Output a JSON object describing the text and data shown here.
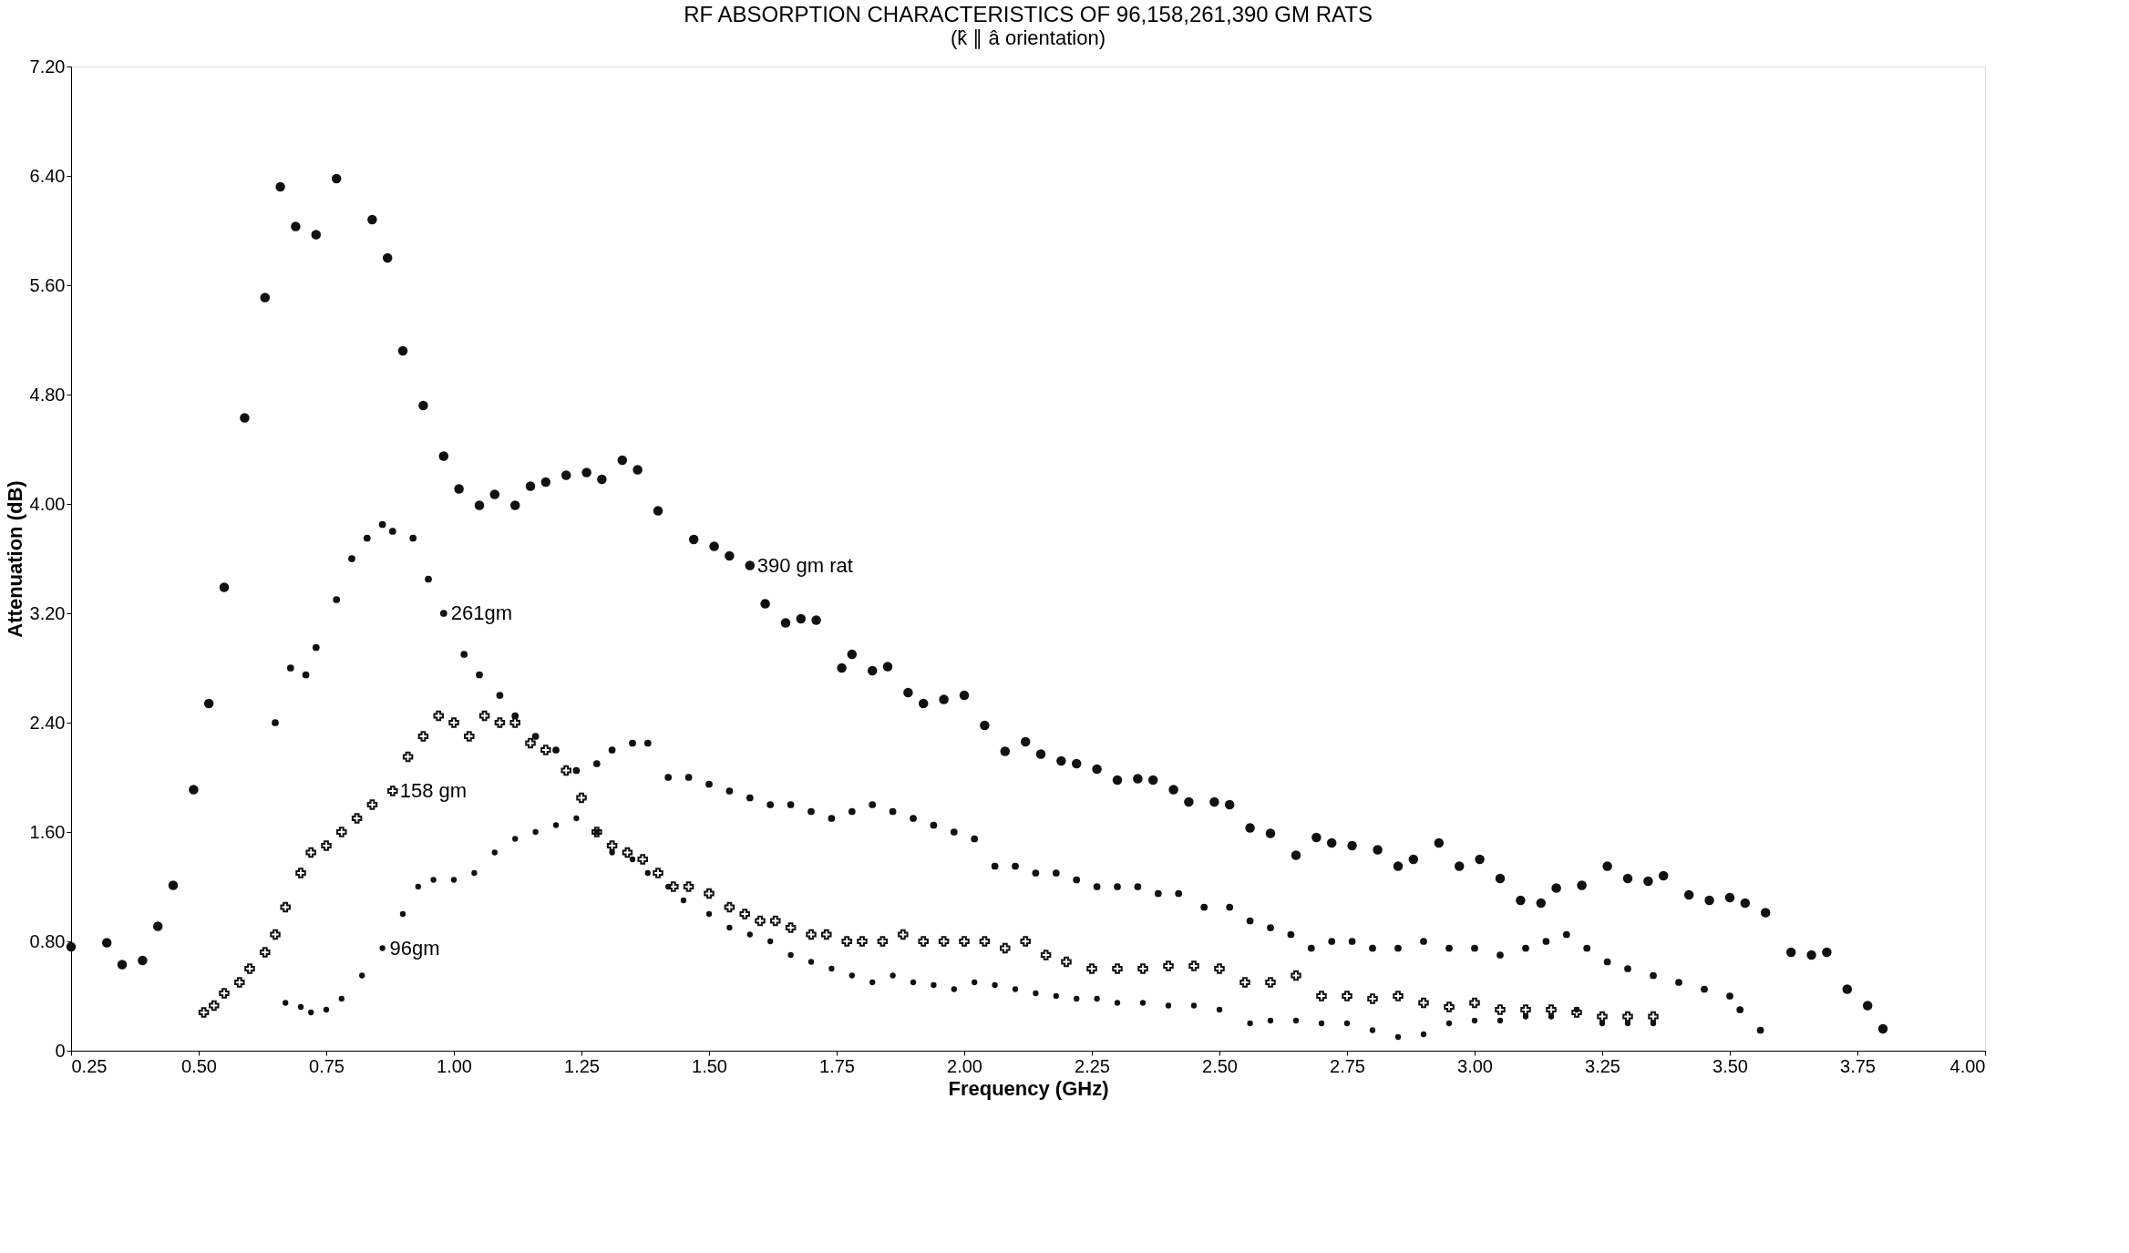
{
  "chart_data": {
    "type": "scatter",
    "title": "RF ABSORPTION CHARACTERISTICS OF 96,158,261,390 GM RATS",
    "subtitle": "(k̂ ∥ â orientation)",
    "xlabel": "Frequency (GHz)",
    "ylabel": "Attenuation (dB)",
    "xlim": [
      0.25,
      4.0
    ],
    "ylim": [
      0,
      7.2
    ],
    "xticks": [
      {
        "value": 0.25,
        "label": "0.25"
      },
      {
        "value": 0.5,
        "label": "0.50"
      },
      {
        "value": 0.75,
        "label": "0.75"
      },
      {
        "value": 1.0,
        "label": "1.00"
      },
      {
        "value": 1.25,
        "label": "1.25"
      },
      {
        "value": 1.5,
        "label": "1.50"
      },
      {
        "value": 1.75,
        "label": "1.75"
      },
      {
        "value": 2.0,
        "label": "2.00"
      },
      {
        "value": 2.25,
        "label": "2.25"
      },
      {
        "value": 2.5,
        "label": "2.50"
      },
      {
        "value": 2.75,
        "label": "2.75"
      },
      {
        "value": 3.0,
        "label": "3.00"
      },
      {
        "value": 3.25,
        "label": "3.25"
      },
      {
        "value": 3.5,
        "label": "3.50"
      },
      {
        "value": 3.75,
        "label": "3.75"
      },
      {
        "value": 4.0,
        "label": "4.00"
      }
    ],
    "yticks": [
      0,
      {
        "value": 0.8,
        "label": "0.80"
      },
      {
        "value": 1.6,
        "label": "1.60"
      },
      {
        "value": 2.4,
        "label": "2.40"
      },
      {
        "value": 3.2,
        "label": "3.20"
      },
      {
        "value": 4.0,
        "label": "4.00"
      },
      {
        "value": 4.8,
        "label": "4.80"
      },
      {
        "value": 5.6,
        "label": "5.60"
      },
      {
        "value": 6.4,
        "label": "6.40"
      },
      {
        "value": 7.2,
        "label": "7.20"
      }
    ],
    "grid": false,
    "series": [
      {
        "color": "#111111",
        "marker": "circle",
        "x": [
          0.25,
          0.32,
          0.35,
          0.39,
          0.42,
          0.45,
          0.49,
          0.52,
          0.55,
          0.59,
          0.63,
          0.66,
          0.69,
          0.73,
          0.77,
          0.84,
          0.87,
          0.9,
          0.94,
          0.98,
          1.01,
          1.05,
          1.08,
          1.12,
          1.15,
          1.18,
          1.22,
          1.26,
          1.29,
          1.33,
          1.36,
          1.4,
          1.47,
          1.51,
          1.54,
          1.58,
          1.61,
          1.65,
          1.68,
          1.71,
          1.76,
          1.78,
          1.82,
          1.85,
          1.89,
          1.92,
          1.96,
          2.0,
          2.04,
          2.08,
          2.12,
          2.15,
          2.19,
          2.22,
          2.26,
          2.3,
          2.34,
          2.37,
          2.41,
          2.44,
          2.49,
          2.52,
          2.56,
          2.6,
          2.65,
          2.69,
          2.72,
          2.76,
          2.81,
          2.85,
          2.88,
          2.93,
          2.97,
          3.01,
          3.05,
          3.09,
          3.13,
          3.16,
          3.21,
          3.26,
          3.3,
          3.34,
          3.37,
          3.42,
          3.46,
          3.5,
          3.53,
          3.57,
          3.62,
          3.66,
          3.69,
          3.73,
          3.77,
          3.8
        ],
        "values": [
          0.76,
          0.79,
          0.63,
          0.66,
          0.91,
          1.21,
          1.91,
          2.54,
          3.39,
          4.63,
          5.51,
          6.32,
          6.03,
          5.97,
          6.38,
          6.08,
          5.8,
          5.12,
          4.72,
          4.35,
          4.11,
          3.99,
          4.07,
          3.99,
          4.13,
          4.16,
          4.21,
          4.23,
          4.18,
          4.32,
          4.25,
          3.95,
          3.74,
          3.69,
          3.62,
          3.55,
          3.27,
          3.13,
          3.16,
          3.15,
          2.8,
          2.9,
          2.78,
          2.81,
          2.62,
          2.54,
          2.57,
          2.6,
          2.38,
          2.19,
          2.26,
          2.17,
          2.12,
          2.1,
          2.06,
          1.98,
          1.99,
          1.98,
          1.91,
          1.82,
          1.82,
          1.8,
          1.63,
          1.59,
          1.43,
          1.56,
          1.52,
          1.5,
          1.47,
          1.35,
          1.4,
          1.52,
          1.35,
          1.4,
          1.26,
          1.1,
          1.08,
          1.19,
          1.21,
          1.35,
          1.26,
          1.24,
          1.28,
          1.14,
          1.1,
          1.12,
          1.08,
          1.01,
          0.72,
          0.7,
          0.72,
          0.45,
          0.33,
          0.16
        ]
      },
      {
        "color": "#111111",
        "marker": "circle",
        "x": [
          0.65,
          0.68,
          0.71,
          0.73,
          0.77,
          0.8,
          0.83,
          0.86,
          0.88,
          0.92,
          0.95,
          0.98,
          1.02,
          1.05,
          1.09,
          1.12,
          1.16,
          1.2,
          1.24,
          1.28,
          1.31,
          1.35,
          1.38,
          1.42,
          1.46,
          1.5,
          1.54,
          1.58,
          1.62,
          1.66,
          1.7,
          1.74,
          1.78,
          1.82,
          1.86,
          1.9,
          1.94,
          1.98,
          2.02,
          2.06,
          2.1,
          2.14,
          2.18,
          2.22,
          2.26,
          2.3,
          2.34,
          2.38,
          2.42,
          2.47,
          2.52,
          2.56,
          2.6,
          2.64,
          2.68,
          2.72,
          2.76,
          2.8,
          2.85,
          2.9,
          2.95,
          3.0,
          3.05,
          3.1,
          3.14,
          3.18,
          3.22,
          3.26,
          3.3,
          3.35,
          3.4,
          3.45,
          3.5,
          3.52,
          3.56
        ],
        "values": [
          2.4,
          2.8,
          2.75,
          2.95,
          3.3,
          3.6,
          3.75,
          3.85,
          3.8,
          3.75,
          3.45,
          3.2,
          2.9,
          2.75,
          2.6,
          2.45,
          2.3,
          2.2,
          2.05,
          2.1,
          2.2,
          2.25,
          2.25,
          2.0,
          2.0,
          1.95,
          1.9,
          1.85,
          1.8,
          1.8,
          1.75,
          1.7,
          1.75,
          1.8,
          1.75,
          1.7,
          1.65,
          1.6,
          1.55,
          1.35,
          1.35,
          1.3,
          1.3,
          1.25,
          1.2,
          1.2,
          1.2,
          1.15,
          1.15,
          1.05,
          1.05,
          0.95,
          0.9,
          0.85,
          0.75,
          0.8,
          0.8,
          0.75,
          0.75,
          0.8,
          0.75,
          0.75,
          0.7,
          0.75,
          0.8,
          0.85,
          0.75,
          0.65,
          0.6,
          0.55,
          0.5,
          0.45,
          0.4,
          0.3,
          0.15
        ]
      },
      {
        "color": "#111111",
        "marker": "cross",
        "x": [
          0.51,
          0.53,
          0.55,
          0.58,
          0.6,
          0.63,
          0.65,
          0.67,
          0.7,
          0.72,
          0.75,
          0.78,
          0.81,
          0.84,
          0.88,
          0.91,
          0.94,
          0.97,
          1.0,
          1.03,
          1.06,
          1.09,
          1.12,
          1.15,
          1.18,
          1.22,
          1.25,
          1.28,
          1.31,
          1.34,
          1.37,
          1.4,
          1.43,
          1.46,
          1.5,
          1.54,
          1.57,
          1.6,
          1.63,
          1.66,
          1.7,
          1.73,
          1.77,
          1.8,
          1.84,
          1.88,
          1.92,
          1.96,
          2.0,
          2.04,
          2.08,
          2.12,
          2.16,
          2.2,
          2.25,
          2.3,
          2.35,
          2.4,
          2.45,
          2.5,
          2.55,
          2.6,
          2.65,
          2.7,
          2.75,
          2.8,
          2.85,
          2.9,
          2.95,
          3.0,
          3.05,
          3.1,
          3.15,
          3.2,
          3.25,
          3.3,
          3.35
        ],
        "values": [
          0.28,
          0.33,
          0.42,
          0.5,
          0.6,
          0.72,
          0.85,
          1.05,
          1.3,
          1.45,
          1.5,
          1.6,
          1.7,
          1.8,
          1.9,
          2.15,
          2.3,
          2.45,
          2.4,
          2.3,
          2.45,
          2.4,
          2.4,
          2.25,
          2.2,
          2.05,
          1.85,
          1.6,
          1.5,
          1.45,
          1.4,
          1.3,
          1.2,
          1.2,
          1.15,
          1.05,
          1.0,
          0.95,
          0.95,
          0.9,
          0.85,
          0.85,
          0.8,
          0.8,
          0.8,
          0.85,
          0.8,
          0.8,
          0.8,
          0.8,
          0.75,
          0.8,
          0.7,
          0.65,
          0.6,
          0.6,
          0.6,
          0.62,
          0.62,
          0.6,
          0.5,
          0.5,
          0.55,
          0.4,
          0.4,
          0.38,
          0.4,
          0.35,
          0.32,
          0.35,
          0.3,
          0.3,
          0.3,
          0.28,
          0.25,
          0.25,
          0.25
        ]
      },
      {
        "color": "#111111",
        "marker": "circle",
        "x": [
          0.67,
          0.7,
          0.72,
          0.75,
          0.78,
          0.82,
          0.86,
          0.9,
          0.93,
          0.96,
          1.0,
          1.04,
          1.08,
          1.12,
          1.16,
          1.2,
          1.24,
          1.28,
          1.31,
          1.35,
          1.38,
          1.42,
          1.45,
          1.5,
          1.54,
          1.58,
          1.62,
          1.66,
          1.7,
          1.74,
          1.78,
          1.82,
          1.86,
          1.9,
          1.94,
          1.98,
          2.02,
          2.06,
          2.1,
          2.14,
          2.18,
          2.22,
          2.26,
          2.3,
          2.35,
          2.4,
          2.45,
          2.5,
          2.56,
          2.6,
          2.65,
          2.7,
          2.75,
          2.8,
          2.85,
          2.9,
          2.95,
          3.0,
          3.05,
          3.1,
          3.15,
          3.2,
          3.25,
          3.3,
          3.35
        ],
        "values": [
          0.35,
          0.32,
          0.28,
          0.3,
          0.38,
          0.55,
          0.75,
          1.0,
          1.2,
          1.25,
          1.25,
          1.3,
          1.45,
          1.55,
          1.6,
          1.65,
          1.7,
          1.6,
          1.45,
          1.4,
          1.3,
          1.2,
          1.1,
          1.0,
          0.9,
          0.85,
          0.8,
          0.7,
          0.65,
          0.6,
          0.55,
          0.5,
          0.55,
          0.5,
          0.48,
          0.45,
          0.5,
          0.48,
          0.45,
          0.42,
          0.4,
          0.38,
          0.38,
          0.35,
          0.35,
          0.33,
          0.33,
          0.3,
          0.2,
          0.22,
          0.22,
          0.2,
          0.2,
          0.15,
          0.1,
          0.12,
          0.2,
          0.22,
          0.22,
          0.25,
          0.25,
          0.3,
          0.2,
          0.2,
          0.2
        ]
      }
    ],
    "annotations": [
      {
        "text": "390 gm rat",
        "x": 1.58,
        "y": 3.55
      },
      {
        "text": "261gm",
        "x": 0.98,
        "y": 3.2
      },
      {
        "text": "158 gm",
        "x": 0.88,
        "y": 1.9
      },
      {
        "text": "96gm",
        "x": 0.86,
        "y": 0.75
      }
    ]
  }
}
